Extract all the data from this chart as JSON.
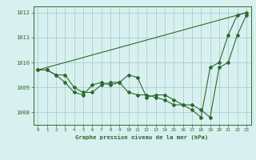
{
  "line1_x": [
    0,
    1,
    2,
    3,
    4,
    5,
    6,
    7,
    8,
    9,
    10,
    11,
    12,
    13,
    14,
    15,
    16,
    17,
    18,
    19,
    20,
    21,
    22,
    23
  ],
  "line1_y": [
    1009.7,
    1009.7,
    1009.5,
    1009.5,
    1009.0,
    1008.8,
    1008.8,
    1009.1,
    1009.2,
    1009.2,
    1008.8,
    1008.7,
    1008.7,
    1008.6,
    1008.5,
    1008.3,
    1008.3,
    1008.1,
    1007.8,
    1009.8,
    1010.0,
    1011.1,
    1011.9,
    1012.0
  ],
  "line2_x": [
    0,
    1,
    2,
    3,
    4,
    5,
    6,
    7,
    8,
    9,
    10,
    11,
    12,
    13,
    14,
    15,
    16,
    17,
    18,
    19,
    20,
    21,
    22,
    23
  ],
  "line2_y": [
    1009.7,
    1009.7,
    1009.5,
    1009.2,
    1008.8,
    1008.7,
    1009.1,
    1009.2,
    1009.1,
    1009.2,
    1009.5,
    1009.4,
    1008.6,
    1008.7,
    1008.7,
    1008.5,
    1008.3,
    1008.3,
    1008.1,
    1007.8,
    1009.8,
    1010.0,
    1011.1,
    1011.9
  ],
  "line3_x": [
    0,
    23
  ],
  "line3_y": [
    1009.7,
    1012.0
  ],
  "line_color": "#2d6a2d",
  "bg_color": "#d8f0f0",
  "grid_color": "#a0c8c8",
  "xlabel": "Graphe pression niveau de la mer (hPa)",
  "ylim": [
    1007.5,
    1012.25
  ],
  "yticks": [
    1008,
    1009,
    1010,
    1011,
    1012
  ],
  "xlim": [
    -0.5,
    23.5
  ]
}
